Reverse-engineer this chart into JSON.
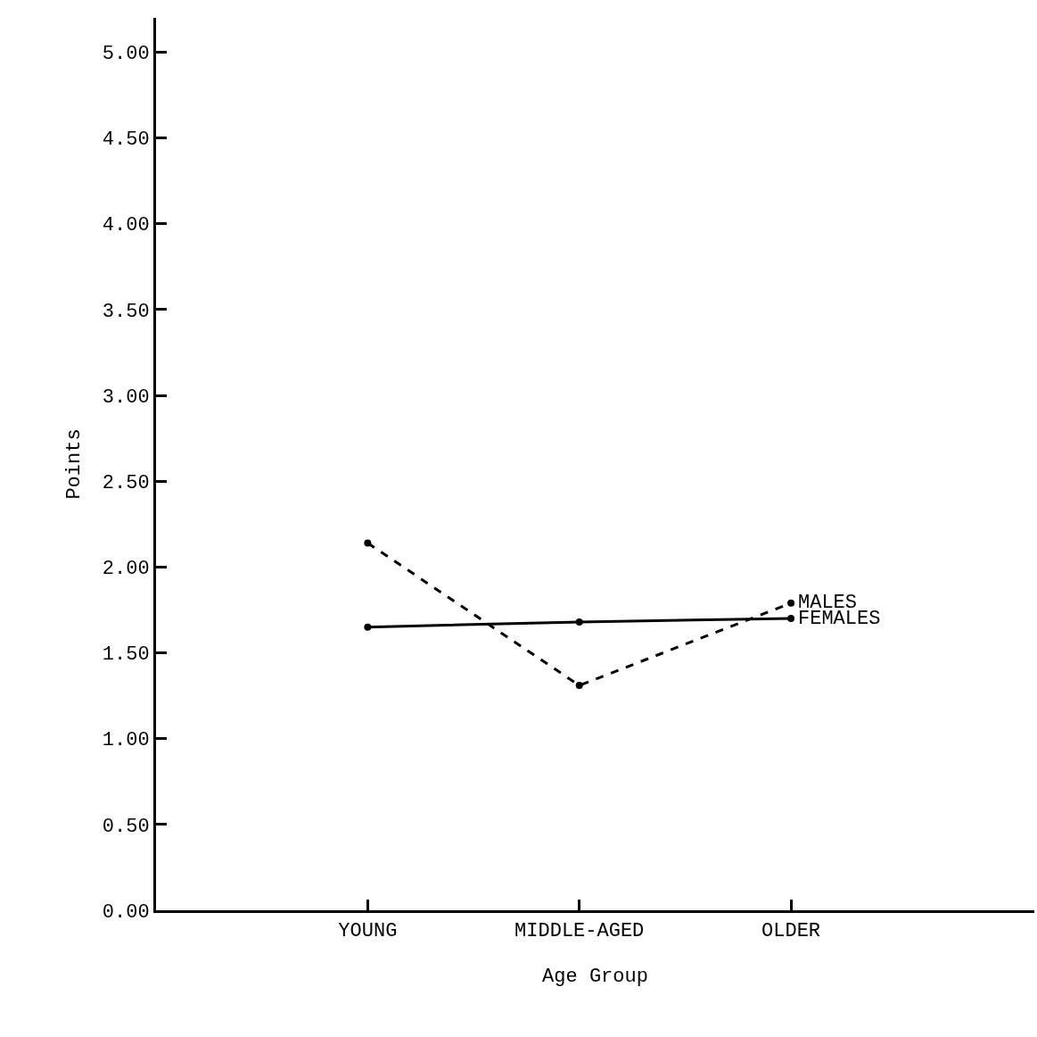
{
  "chart_data": {
    "type": "line",
    "xlabel": "Age Group",
    "ylabel": "Points",
    "categories": [
      "YOUNG",
      "MIDDLE-AGED",
      "OLDER"
    ],
    "series": [
      {
        "name": "MALES",
        "color": "#000000",
        "line_style": "dashed",
        "values": [
          2.14,
          1.31,
          1.79
        ]
      },
      {
        "name": "FEMALES",
        "color": "#000000",
        "line_style": "solid",
        "values": [
          1.65,
          1.68,
          1.7
        ]
      }
    ],
    "ylim": [
      0,
      5.2
    ],
    "yticks": [
      {
        "value": 0,
        "label": "0.00"
      },
      {
        "value": 0.5,
        "label": "0.50"
      },
      {
        "value": 1,
        "label": "1.00"
      },
      {
        "value": 1.5,
        "label": "1.50"
      },
      {
        "value": 2,
        "label": "2.00"
      },
      {
        "value": 2.5,
        "label": "2.50"
      },
      {
        "value": 3,
        "label": "3.00"
      },
      {
        "value": 3.5,
        "label": "3.50"
      },
      {
        "value": 4,
        "label": "4.00"
      },
      {
        "value": 4.5,
        "label": "4.50"
      },
      {
        "value": 5,
        "label": "5.00"
      }
    ],
    "grid": false,
    "legend": false,
    "marker": "circle"
  }
}
